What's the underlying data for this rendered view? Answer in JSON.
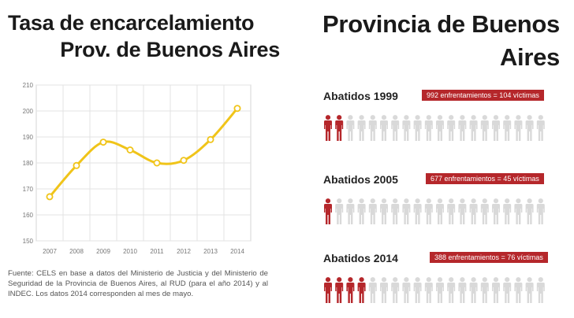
{
  "left_title": {
    "line1": "Tasa de encarcelamiento",
    "line2": "Prov. de Buenos Aires"
  },
  "right_title": {
    "line1": "Provincia de Buenos",
    "line2": "Aires"
  },
  "source_text": "Fuente: CELS en base a datos del Ministerio de Justicia y del Ministerio de Seguridad de la Provincia de Buenos Aires, al RUD (para el año 2014) y al INDEC. Los datos 2014 corresponden al mes de mayo.",
  "chart_data": {
    "type": "line",
    "x": [
      "2007",
      "2008",
      "2009",
      "2010",
      "2011",
      "2012",
      "2013",
      "2014"
    ],
    "series": [
      {
        "values": [
          167,
          179,
          188,
          185,
          180,
          181,
          189,
          201
        ]
      }
    ],
    "y_ticks": [
      150,
      160,
      170,
      180,
      190,
      200,
      210
    ],
    "ylim": [
      150,
      210
    ],
    "grid": true,
    "line_color": "#f0c419",
    "marker_fill": "#ffffff"
  },
  "abatidos": [
    {
      "label": "Abatidos 1999",
      "badge": "992 enfrentamientos = 104 víctimas",
      "red_count": 2
    },
    {
      "label": "Abatidos 2005",
      "badge": "677 enfrentamientos = 45 víctimas",
      "red_count": 1
    },
    {
      "label": "Abatidos 2014",
      "badge": "388 enfrentamientos = 76 víctimas",
      "red_count": 4
    }
  ],
  "figures_total": 20,
  "colors": {
    "red": "#b5272b",
    "grey": "#d9d9d9"
  }
}
